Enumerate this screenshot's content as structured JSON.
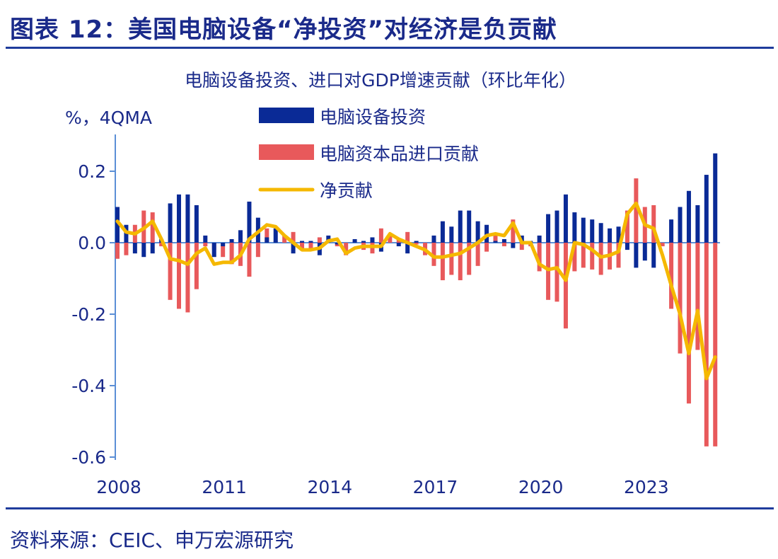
{
  "header": {
    "title": "图表 12：美国电脑设备“净投资”对经济是负贡献"
  },
  "footer": {
    "source": "资料来源：CEIC、申万宏源研究"
  },
  "colors": {
    "invest": "#0a2a96",
    "imports": "#e8595b",
    "net": "#f5b800",
    "axis": "#5b8fd6",
    "text": "#1a2a8a"
  },
  "chart_data": {
    "type": "bar",
    "title": "电脑设备投资、进口对GDP增速贡献（环比年化）",
    "ylabel": "%，4QMA",
    "ylim": [
      -0.6,
      0.3
    ],
    "yticks": [
      "0.2",
      "0.0",
      "-0.2",
      "-0.4",
      "-0.6"
    ],
    "ytick_values": [
      0.2,
      0.0,
      -0.2,
      -0.4,
      -0.6
    ],
    "xticks": [
      "2008",
      "2011",
      "2014",
      "2017",
      "2020",
      "2023"
    ],
    "x_start": "2008Q1",
    "x_end": "2025Q1",
    "grid": false,
    "legend_position": "top-center",
    "series": [
      {
        "name": "电脑设备投资",
        "type": "bar",
        "values": [
          0.1,
          0.05,
          -0.03,
          -0.04,
          -0.03,
          0.01,
          0.11,
          0.135,
          0.135,
          0.105,
          0.02,
          -0.04,
          -0.01,
          0.01,
          0.035,
          0.115,
          0.07,
          0.015,
          0.04,
          0.0,
          -0.03,
          0.005,
          0.005,
          -0.035,
          0.02,
          -0.005,
          0.0,
          0.01,
          0.005,
          0.015,
          -0.025,
          0.0,
          -0.01,
          -0.03,
          0.005,
          0.0,
          0.02,
          0.06,
          0.045,
          0.09,
          0.09,
          0.06,
          0.05,
          0.005,
          0.01,
          -0.015,
          0.02,
          0.005,
          0.02,
          0.08,
          0.09,
          0.135,
          0.085,
          0.07,
          0.065,
          0.055,
          0.04,
          0.045,
          -0.02,
          -0.07,
          -0.05,
          -0.07,
          0.0,
          0.065,
          0.1,
          0.145,
          0.105,
          0.19,
          0.25
        ]
      },
      {
        "name": "电脑资本品进口贡献",
        "type": "bar",
        "values": [
          -0.045,
          -0.035,
          0.05,
          0.09,
          0.085,
          -0.01,
          -0.16,
          -0.185,
          -0.195,
          -0.13,
          -0.01,
          -0.02,
          -0.04,
          -0.06,
          -0.065,
          -0.095,
          -0.04,
          0.04,
          0.005,
          0.02,
          0.03,
          -0.02,
          -0.02,
          0.015,
          0.005,
          -0.01,
          -0.035,
          0.005,
          -0.02,
          -0.03,
          0.04,
          0.02,
          0.01,
          0.03,
          -0.005,
          -0.035,
          -0.065,
          -0.105,
          -0.09,
          -0.105,
          -0.09,
          -0.065,
          -0.025,
          0.02,
          -0.01,
          0.065,
          -0.02,
          -0.01,
          -0.08,
          -0.16,
          -0.165,
          -0.24,
          -0.08,
          -0.07,
          -0.075,
          -0.09,
          -0.075,
          -0.07,
          0.09,
          0.18,
          0.1,
          0.105,
          -0.01,
          -0.185,
          -0.31,
          -0.45,
          -0.3,
          -0.57,
          -0.57
        ]
      },
      {
        "name": "净贡献",
        "type": "line",
        "values": [
          0.06,
          0.03,
          0.025,
          0.04,
          0.06,
          0.01,
          -0.045,
          -0.05,
          -0.06,
          -0.03,
          -0.015,
          -0.06,
          -0.055,
          -0.055,
          -0.035,
          0.01,
          0.03,
          0.05,
          0.045,
          0.02,
          0.0,
          -0.02,
          -0.02,
          -0.015,
          0.005,
          0.01,
          -0.03,
          -0.015,
          -0.01,
          -0.01,
          -0.01,
          0.025,
          0.01,
          0.0,
          -0.01,
          -0.02,
          -0.04,
          -0.04,
          -0.035,
          -0.03,
          -0.015,
          0.0,
          0.02,
          0.025,
          0.02,
          0.055,
          0.0,
          0.0,
          -0.06,
          -0.075,
          -0.07,
          -0.105,
          0.0,
          -0.005,
          -0.02,
          -0.04,
          -0.035,
          -0.025,
          0.08,
          0.11,
          0.05,
          0.04,
          -0.035,
          -0.12,
          -0.2,
          -0.31,
          -0.19,
          -0.38,
          -0.32
        ]
      }
    ]
  }
}
